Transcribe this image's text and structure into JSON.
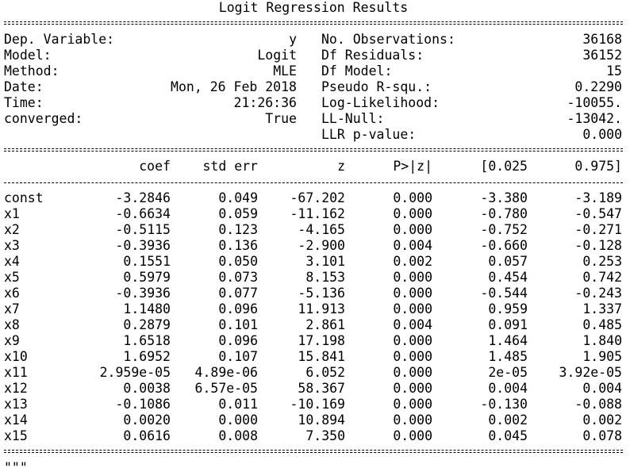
{
  "title": "Logit Regression Results",
  "info_left": [
    {
      "label": "Dep. Variable:",
      "value": "y"
    },
    {
      "label": "Model:",
      "value": "Logit"
    },
    {
      "label": "Method:",
      "value": "MLE"
    },
    {
      "label": "Date:",
      "value": "Mon, 26 Feb 2018"
    },
    {
      "label": "Time:",
      "value": "21:26:36"
    },
    {
      "label": "converged:",
      "value": "True"
    }
  ],
  "info_right": [
    {
      "label": "No. Observations:",
      "value": "36168"
    },
    {
      "label": "Df Residuals:",
      "value": "36152"
    },
    {
      "label": "Df Model:",
      "value": "15"
    },
    {
      "label": "Pseudo R-squ.:",
      "value": "0.2290"
    },
    {
      "label": "Log-Likelihood:",
      "value": "-10055."
    },
    {
      "label": "LL-Null:",
      "value": "-13042."
    },
    {
      "label": "LLR p-value:",
      "value": "0.000"
    }
  ],
  "coef_headers": [
    "",
    "coef",
    "std err",
    "z",
    "P>|z|",
    "[0.025",
    "0.975]"
  ],
  "coef_rows": [
    [
      "const",
      "-3.2846",
      "0.049",
      "-67.202",
      "0.000",
      "-3.380",
      "-3.189"
    ],
    [
      "x1",
      "-0.6634",
      "0.059",
      "-11.162",
      "0.000",
      "-0.780",
      "-0.547"
    ],
    [
      "x2",
      "-0.5115",
      "0.123",
      "-4.165",
      "0.000",
      "-0.752",
      "-0.271"
    ],
    [
      "x3",
      "-0.3936",
      "0.136",
      "-2.900",
      "0.004",
      "-0.660",
      "-0.128"
    ],
    [
      "x4",
      "0.1551",
      "0.050",
      "3.101",
      "0.002",
      "0.057",
      "0.253"
    ],
    [
      "x5",
      "0.5979",
      "0.073",
      "8.153",
      "0.000",
      "0.454",
      "0.742"
    ],
    [
      "x6",
      "-0.3936",
      "0.077",
      "-5.136",
      "0.000",
      "-0.544",
      "-0.243"
    ],
    [
      "x7",
      "1.1480",
      "0.096",
      "11.913",
      "0.000",
      "0.959",
      "1.337"
    ],
    [
      "x8",
      "0.2879",
      "0.101",
      "2.861",
      "0.004",
      "0.091",
      "0.485"
    ],
    [
      "x9",
      "1.6518",
      "0.096",
      "17.198",
      "0.000",
      "1.464",
      "1.840"
    ],
    [
      "x10",
      "1.6952",
      "0.107",
      "15.841",
      "0.000",
      "1.485",
      "1.905"
    ],
    [
      "x11",
      "2.959e-05",
      "4.89e-06",
      "6.052",
      "0.000",
      "2e-05",
      "3.92e-05"
    ],
    [
      "x12",
      "0.0038",
      "6.57e-05",
      "58.367",
      "0.000",
      "0.004",
      "0.004"
    ],
    [
      "x13",
      "-0.1086",
      "0.011",
      "-10.169",
      "0.000",
      "-0.130",
      "-0.088"
    ],
    [
      "x14",
      "0.0020",
      "0.000",
      "10.894",
      "0.000",
      "0.002",
      "0.002"
    ],
    [
      "x15",
      "0.0616",
      "0.008",
      "7.350",
      "0.000",
      "0.045",
      "0.078"
    ]
  ],
  "footer_fragment": "\"\"\""
}
